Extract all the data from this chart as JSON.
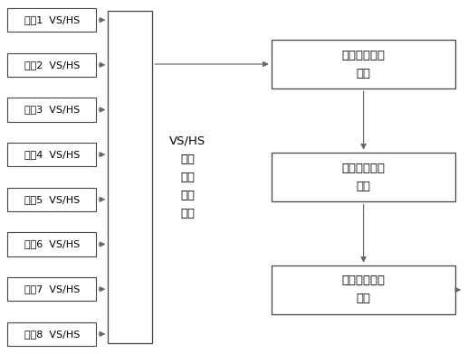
{
  "figsize": [
    5.17,
    3.92
  ],
  "dpi": 100,
  "bg_color": "#ffffff",
  "channels": [
    "通道1  VS/HS",
    "通道2  VS/HS",
    "通道3  VS/HS",
    "通道4  VS/HS",
    "通道5  VS/HS",
    "通道6  VS/HS",
    "通道7  VS/HS",
    "通道8  VS/HS"
  ],
  "center_box_label": "VS/HS\n信号\n判断\n处理\n模块",
  "right_boxes": [
    "通道状态生成\n模块",
    "数据组合转换\n模块",
    "数据定时传输\n模块"
  ],
  "line_color": "#666666",
  "box_edge_color": "#444444",
  "font_size_channel": 8.0,
  "font_size_center": 9.5,
  "font_size_right": 9.5
}
